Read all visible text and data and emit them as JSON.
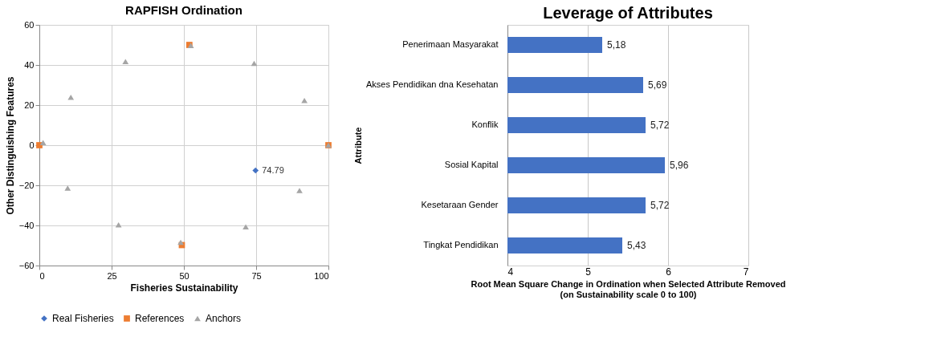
{
  "chart_data": [
    {
      "type": "scatter",
      "title": "RAPFISH Ordination",
      "xlabel": "Fisheries Sustainability",
      "ylabel": "Other Distinguishing Features",
      "xlim": [
        0,
        100
      ],
      "xticks": [
        0,
        25,
        50,
        75,
        100
      ],
      "ylim": [
        -60,
        60
      ],
      "yticks": [
        -60,
        -40,
        -20,
        0,
        20,
        40,
        60
      ],
      "grid": true,
      "legend": "bottom",
      "annotations": [
        {
          "text": "74.79",
          "x": 74.79,
          "y": -12.6
        }
      ],
      "series": [
        {
          "name": "Real Fisheries",
          "color": "#4472c4",
          "marker": "diamond",
          "x": [
            74.79
          ],
          "values": [
            -12.6
          ]
        },
        {
          "name": "References",
          "color": "#ed7d31",
          "marker": "square",
          "x": [
            0,
            51.9,
            100,
            49.3
          ],
          "values": [
            0,
            50,
            0,
            -49.8
          ]
        },
        {
          "name": "Anchors",
          "color": "#a5a5a5",
          "marker": "triangle",
          "x": [
            1.3,
            10.9,
            29.8,
            52.4,
            74.3,
            91.7,
            100,
            9.8,
            27.4,
            48.9,
            71.4,
            90
          ],
          "values": [
            1.3,
            23.9,
            41.7,
            49.7,
            40.8,
            22.3,
            0,
            -21.4,
            -39.7,
            -48.4,
            -40.7,
            -22.6
          ]
        }
      ]
    },
    {
      "type": "bar",
      "orientation": "horizontal",
      "title": "Leverage of Attributes",
      "xlabel": "Root Mean Square Change in Ordination when Selected Attribute Removed\n(on Sustainability scale 0 to 100)",
      "ylabel": "Attribute",
      "categories": [
        "Penerimaan Masyarakat",
        "Akses Pendidikan dna Kesehatan",
        "Konflik",
        "Sosial Kapital",
        "Kesetaraan Gender",
        "Tingkat Pendidikan"
      ],
      "values": [
        5.18,
        5.69,
        5.72,
        5.96,
        5.72,
        5.43
      ],
      "value_labels": [
        "5,18",
        "5,69",
        "5,72",
        "5,96",
        "5,72",
        "5,43"
      ],
      "color": "#4472c4",
      "xlim": [
        4,
        7
      ],
      "xticks": [
        4,
        5,
        6,
        7
      ],
      "grid": "x"
    }
  ]
}
